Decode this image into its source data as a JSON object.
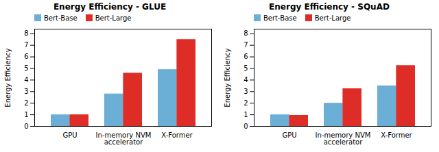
{
  "chart_data": [
    {
      "type": "bar",
      "title": "Energy Efficiency - GLUE",
      "ylabel": "Energy Efficiency",
      "categories": [
        "GPU",
        "In-memory NVM\naccelerator",
        "X-Former"
      ],
      "series": [
        {
          "name": "Bert-Base",
          "color": "#6baed6",
          "values": [
            1.0,
            2.8,
            4.9
          ]
        },
        {
          "name": "Bert-Large",
          "color": "#de2d26",
          "values": [
            1.0,
            4.6,
            7.5
          ]
        }
      ],
      "ylim": [
        0,
        8.4
      ],
      "yticks": [
        0,
        1,
        2,
        3,
        4,
        5,
        6,
        7,
        8
      ],
      "legend": "upper left"
    },
    {
      "type": "bar",
      "title": "Energy Efficiency - SQuAD",
      "ylabel": "Energy Efficiency",
      "categories": [
        "GPU",
        "In-memory NVM\naccelerator",
        "X-Former"
      ],
      "series": [
        {
          "name": "Bert-Base",
          "color": "#6baed6",
          "values": [
            1.0,
            2.0,
            3.5
          ]
        },
        {
          "name": "Bert-Large",
          "color": "#de2d26",
          "values": [
            0.95,
            3.25,
            5.25
          ]
        }
      ],
      "ylim": [
        0,
        8.4
      ],
      "yticks": [
        0,
        1,
        2,
        3,
        4,
        5,
        6,
        7,
        8
      ],
      "legend": "upper left"
    }
  ]
}
